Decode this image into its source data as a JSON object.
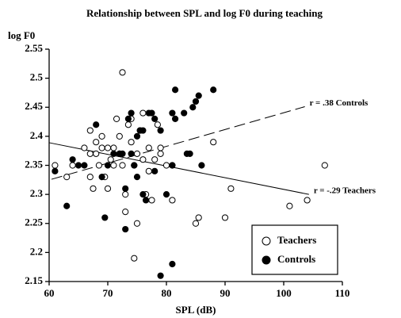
{
  "chart_data": {
    "type": "scatter",
    "title": "Relationship between SPL and log F0 during teaching",
    "x_label": "SPL (dB)",
    "y_label": "log F0",
    "xlim": [
      60,
      110
    ],
    "xticks": [
      60,
      70,
      80,
      90,
      100,
      110
    ],
    "ylim": [
      2.15,
      2.55
    ],
    "yticks": [
      2.15,
      2.2,
      2.25,
      2.3,
      2.35,
      2.4,
      2.45,
      2.5,
      2.55
    ],
    "legend": "lower right",
    "series": [
      {
        "name": "Teachers",
        "color": "#ffffff",
        "x": [
          72.5,
          61,
          63,
          64,
          66,
          67,
          67,
          67.5,
          67,
          68,
          68,
          68.5,
          69,
          69,
          69.5,
          70,
          70,
          70.5,
          71,
          71,
          71.5,
          72,
          72,
          72.5,
          73,
          73,
          73.5,
          74,
          74,
          74.5,
          75,
          75,
          76,
          76,
          76.5,
          77,
          77,
          77.5,
          78,
          78.5,
          79,
          80,
          81,
          81,
          85,
          85.5,
          88,
          90,
          91,
          101,
          104,
          107,
          79,
          75.5,
          74.5
        ],
        "values": [
          2.51,
          2.35,
          2.33,
          2.35,
          2.38,
          2.41,
          2.37,
          2.31,
          2.33,
          2.39,
          2.37,
          2.35,
          2.4,
          2.38,
          2.33,
          2.38,
          2.31,
          2.36,
          2.38,
          2.35,
          2.43,
          2.4,
          2.37,
          2.35,
          2.3,
          2.27,
          2.42,
          2.43,
          2.39,
          2.35,
          2.37,
          2.25,
          2.44,
          2.36,
          2.3,
          2.38,
          2.34,
          2.29,
          2.36,
          2.42,
          2.37,
          2.35,
          2.35,
          2.29,
          2.25,
          2.26,
          2.39,
          2.26,
          2.31,
          2.28,
          2.29,
          2.35,
          2.38,
          2.41,
          2.19
        ]
      },
      {
        "name": "Controls",
        "color": "#000000",
        "x": [
          61,
          64,
          65,
          63,
          68,
          69,
          69.5,
          70,
          71,
          72,
          73,
          73,
          73.5,
          74,
          74,
          74.5,
          75,
          75,
          75.5,
          76,
          76,
          76.5,
          77,
          77.5,
          78,
          78,
          79,
          79,
          80,
          81,
          81,
          81,
          81.5,
          81.5,
          83,
          83.5,
          84,
          84.5,
          85,
          85.5,
          86,
          88,
          72.5,
          66
        ],
        "values": [
          2.34,
          2.36,
          2.35,
          2.28,
          2.42,
          2.33,
          2.26,
          2.35,
          2.37,
          2.37,
          2.31,
          2.24,
          2.43,
          2.44,
          2.37,
          2.35,
          2.4,
          2.33,
          2.41,
          2.41,
          2.3,
          2.29,
          2.44,
          2.44,
          2.43,
          2.34,
          2.41,
          2.16,
          2.3,
          2.44,
          2.35,
          2.18,
          2.48,
          2.43,
          2.44,
          2.37,
          2.37,
          2.45,
          2.46,
          2.47,
          2.35,
          2.48,
          2.37,
          2.35
        ]
      }
    ],
    "fit_lines": [
      {
        "x": [
          60.4,
          103.6
        ],
        "y": [
          2.326,
          2.451
        ],
        "dashed": true,
        "annotation": "r = .38  Controls"
      },
      {
        "x": [
          60,
          104.3
        ],
        "y": [
          2.389,
          2.3
        ],
        "dashed": false,
        "annotation": "r = -.29  Teachers"
      }
    ]
  }
}
